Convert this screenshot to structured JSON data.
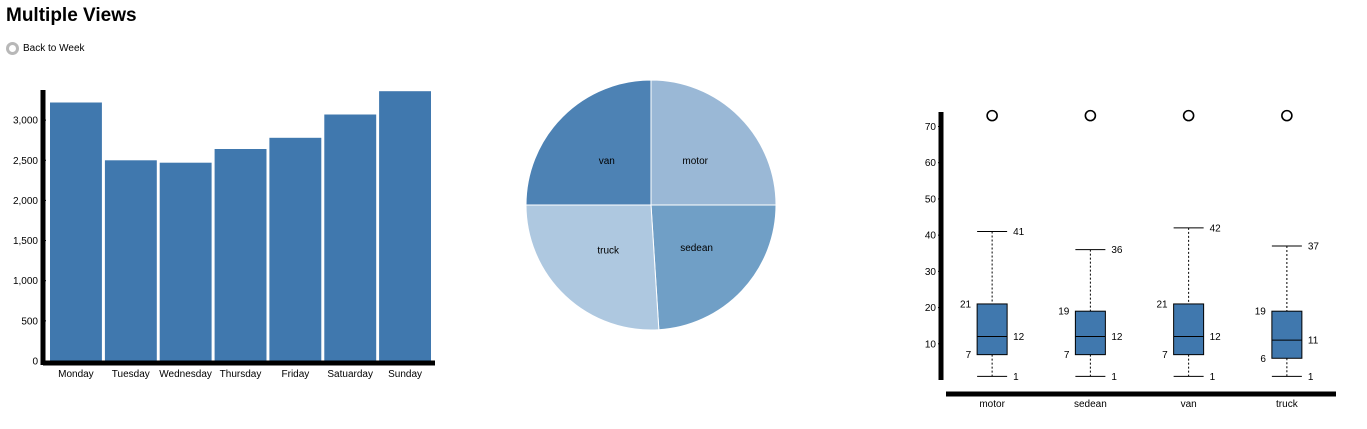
{
  "page": {
    "title": "Multiple Views",
    "radio_label": "Back to Week"
  },
  "colors": {
    "bar": "#4078ae",
    "box": "#4078ae",
    "axis": "#000000"
  },
  "chart_data": [
    {
      "type": "bar",
      "categories": [
        "Monday",
        "Tuesday",
        "Wednesday",
        "Thursday",
        "Friday",
        "Satuarday",
        "Sunday"
      ],
      "values": [
        3220,
        2500,
        2470,
        2640,
        2780,
        3070,
        3360
      ],
      "yticks": [
        0,
        500,
        1000,
        1500,
        2000,
        2500,
        3000
      ],
      "ytick_labels": [
        "0",
        "500",
        "1,000",
        "1,500",
        "2,000",
        "2,500",
        "3,000"
      ],
      "ylim": [
        0,
        3400
      ],
      "grid": false
    },
    {
      "type": "pie",
      "slices": [
        {
          "label": "motor",
          "value": 25,
          "color": "#9ab8d6"
        },
        {
          "label": "sedean",
          "value": 24,
          "color": "#709fc6"
        },
        {
          "label": "truck",
          "value": 26,
          "color": "#aec8e0"
        },
        {
          "label": "van",
          "value": 25,
          "color": "#4d82b4"
        }
      ]
    },
    {
      "type": "box",
      "categories": [
        "motor",
        "sedean",
        "van",
        "truck"
      ],
      "boxes": [
        {
          "min": 1,
          "q1": 7,
          "median": 12,
          "q3": 21,
          "max": 41,
          "outlier": 73
        },
        {
          "min": 1,
          "q1": 7,
          "median": 12,
          "q3": 19,
          "max": 36,
          "outlier": 73
        },
        {
          "min": 1,
          "q1": 7,
          "median": 12,
          "q3": 21,
          "max": 42,
          "outlier": 73
        },
        {
          "min": 1,
          "q1": 6,
          "median": 11,
          "q3": 19,
          "max": 37,
          "outlier": 73
        }
      ],
      "yticks": [
        10,
        20,
        30,
        40,
        50,
        60,
        70
      ],
      "ylim": [
        0,
        74
      ],
      "grid": false
    }
  ]
}
